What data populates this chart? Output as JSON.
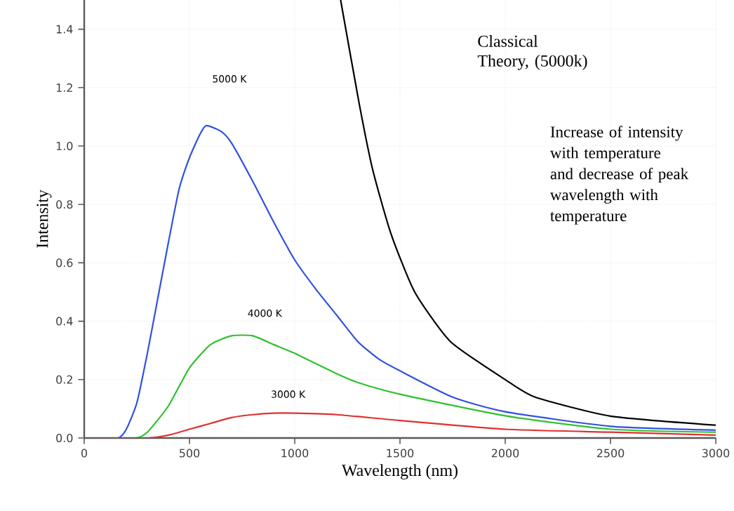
{
  "chart_data": {
    "type": "line",
    "xlabel": "Wavelength (nm)",
    "ylabel": "Intensity",
    "xlim": [
      0,
      3000
    ],
    "ylim": [
      0,
      1.5
    ],
    "xticks": [
      0,
      500,
      1000,
      1500,
      2000,
      2500,
      3000
    ],
    "yticks": [
      {
        "value": 0,
        "label": "0.0"
      },
      {
        "value": 0.2,
        "label": "0.2"
      },
      {
        "value": 0.4,
        "label": "0.4"
      },
      {
        "value": 0.6,
        "label": "0.6"
      },
      {
        "value": 0.8,
        "label": "0.8"
      },
      {
        "value": 1.0,
        "label": "1.0"
      },
      {
        "value": 1.2,
        "label": "1.2"
      },
      {
        "value": 1.4,
        "label": "1.4"
      }
    ],
    "grid": true,
    "marker": "none",
    "line_style": "solid",
    "series": [
      {
        "color": "#3050e0",
        "x": [
          0,
          160,
          200,
          250,
          300,
          350,
          400,
          450,
          500,
          550,
          580,
          650,
          700,
          800,
          900,
          1000,
          1100,
          1200,
          1300,
          1400,
          1500,
          1750,
          2000,
          2500,
          3000
        ],
        "values": [
          0,
          0,
          0.03,
          0.12,
          0.29,
          0.48,
          0.67,
          0.85,
          0.96,
          1.04,
          1.07,
          1.05,
          1.01,
          0.88,
          0.74,
          0.61,
          0.51,
          0.42,
          0.33,
          0.27,
          0.23,
          0.14,
          0.09,
          0.04,
          0.027
        ]
      },
      {
        "color": "#30c030",
        "x": [
          0,
          240,
          300,
          400,
          500,
          600,
          700,
          800,
          900,
          1000,
          1200,
          1300,
          1500,
          2000,
          2500,
          3000
        ],
        "values": [
          0,
          0,
          0.02,
          0.11,
          0.24,
          0.32,
          0.35,
          0.35,
          0.32,
          0.29,
          0.22,
          0.19,
          0.15,
          0.076,
          0.03,
          0.02
        ]
      },
      {
        "color": "#e03030",
        "x": [
          0,
          300,
          400,
          500,
          600,
          700,
          800,
          900,
          1000,
          1200,
          1500,
          2000,
          2500,
          3000
        ],
        "values": [
          0,
          0,
          0.01,
          0.03,
          0.05,
          0.07,
          0.08,
          0.085,
          0.085,
          0.08,
          0.06,
          0.03,
          0.02,
          0.01
        ]
      },
      {
        "color": "#000000",
        "x": [
          1218,
          1305,
          1370,
          1457,
          1570,
          1740,
          2000,
          2142,
          2500,
          3000
        ],
        "values": [
          1.5,
          1.15,
          0.92,
          0.7,
          0.5,
          0.33,
          0.2,
          0.14,
          0.075,
          0.044
        ]
      }
    ],
    "annotations": [
      "5000 K",
      "4000 K",
      "3000 K",
      "Classical Theory, (5000k)",
      "Increase of intensity with temperature and decrease of peak wavelength with temperature"
    ]
  }
}
